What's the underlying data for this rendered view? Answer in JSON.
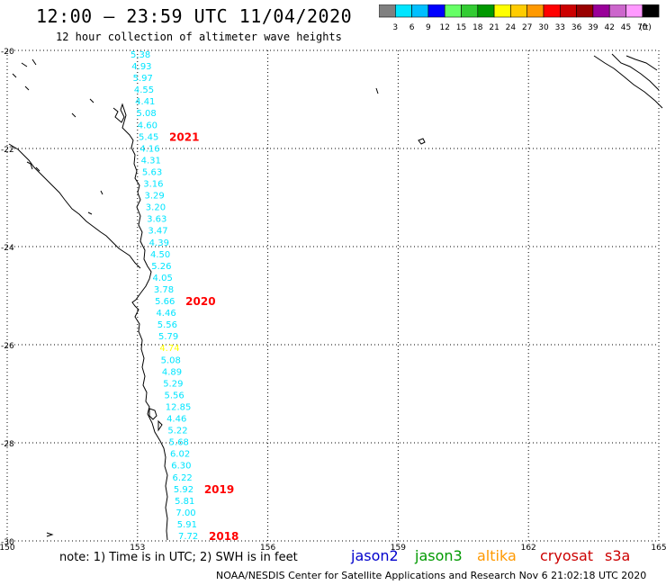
{
  "title": "12:00 — 23:59 UTC 11/04/2020",
  "subtitle": "12 hour collection of altimeter wave heights",
  "colorbar": {
    "ticks": [
      "3",
      "6",
      "9",
      "12",
      "15",
      "18",
      "21",
      "24",
      "27",
      "30",
      "33",
      "36",
      "39",
      "42",
      "45",
      "70"
    ],
    "unit": "(ft)",
    "colors": [
      "#808080",
      "#00e5ff",
      "#00bfff",
      "#0000ff",
      "#66ff66",
      "#33cc33",
      "#009900",
      "#ffff00",
      "#ffcc00",
      "#ff9900",
      "#ff0000",
      "#cc0000",
      "#990000",
      "#990099",
      "#cc66cc",
      "#ff99ff",
      "#000000"
    ]
  },
  "axes": {
    "lat_labels": [
      "-20",
      "-22",
      "-24",
      "-26",
      "-28",
      "-30"
    ],
    "lon_labels": [
      "150",
      "153",
      "156",
      "159",
      "162",
      "165"
    ]
  },
  "track": {
    "color": "#00e5ff",
    "highlight_color": "#ffff00",
    "highlight_index": 25,
    "values": [
      "5.38",
      "4.93",
      "5.97",
      "4.55",
      "4.41",
      "5.08",
      "4.60",
      "5.45",
      "4.16",
      "4.31",
      "5.63",
      "3.16",
      "3.29",
      "3.20",
      "3.63",
      "3.47",
      "4.39",
      "4.50",
      "5.26",
      "4.05",
      "3.78",
      "5.66",
      "4.46",
      "5.56",
      "5.79",
      "4.74",
      "5.08",
      "4.89",
      "5.29",
      "5.56",
      "12.85",
      "4.46",
      "5.22",
      "5.68",
      "6.02",
      "6.30",
      "6.22",
      "5.92",
      "5.81",
      "7.00",
      "5.91",
      "7.72"
    ]
  },
  "time_labels": [
    {
      "text": "2021"
    },
    {
      "text": "2020"
    },
    {
      "text": "2019"
    },
    {
      "text": "2018"
    }
  ],
  "time_label_color": "#ff0000",
  "note": "note: 1) Time is in UTC; 2) SWH is in feet",
  "satellites": [
    {
      "name": "jason2",
      "color": "#0000cc"
    },
    {
      "name": "jason3",
      "color": "#009900"
    },
    {
      "name": "altika",
      "color": "#ff9900"
    },
    {
      "name": "cryosat",
      "color": "#cc0000"
    },
    {
      "name": "s3a",
      "color": "#cc0000"
    }
  ],
  "footer": "NOAA/NESDIS Center for Satellite Applications and Research    Nov  6 21:02:18 UTC 2020"
}
